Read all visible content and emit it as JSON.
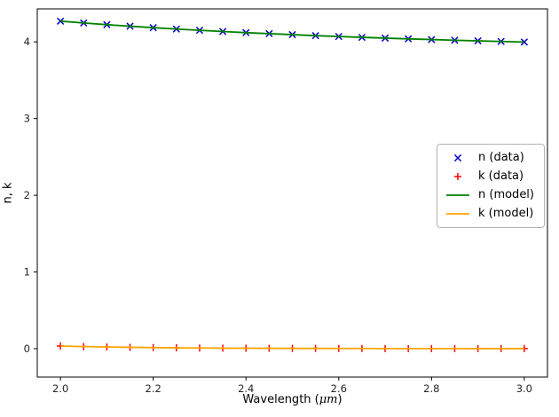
{
  "figure": {
    "background": "#ffffff",
    "axes_edge_color": "#000000",
    "tick_label_color": "#262626"
  },
  "chart_data": {
    "type": "line+scatter",
    "title": "",
    "xlabel": "Wavelength (μm)",
    "xlabel_prefix": "Wavelength (",
    "xlabel_italic": "μm",
    "xlabel_suffix": ")",
    "ylabel": "n, k",
    "xlim": [
      1.95,
      3.05
    ],
    "ylim": [
      -0.37,
      4.43
    ],
    "xticks": [
      2.0,
      2.2,
      2.4,
      2.6,
      2.8,
      3.0
    ],
    "xtick_labels": [
      "2.0",
      "2.2",
      "2.4",
      "2.6",
      "2.8",
      "3.0"
    ],
    "yticks": [
      0,
      1,
      2,
      3,
      4
    ],
    "ytick_labels": [
      "0",
      "1",
      "2",
      "3",
      "4"
    ],
    "grid": false,
    "legend": {
      "position": "center right",
      "border_color": "#b3b3b3",
      "background": "#ffffff"
    },
    "x": [
      2.0,
      2.05,
      2.1,
      2.15,
      2.2,
      2.25,
      2.3,
      2.35,
      2.4,
      2.45,
      2.5,
      2.55,
      2.6,
      2.65,
      2.7,
      2.75,
      2.8,
      2.85,
      2.9,
      2.95,
      3.0
    ],
    "series": [
      {
        "name": "n (data)",
        "style": "marker",
        "marker": "x",
        "color": "#0000cd",
        "values": [
          4.27,
          4.246,
          4.224,
          4.204,
          4.185,
          4.167,
          4.151,
          4.135,
          4.12,
          4.107,
          4.094,
          4.081,
          4.07,
          4.059,
          4.049,
          4.039,
          4.03,
          4.021,
          4.013,
          4.005,
          3.998
        ]
      },
      {
        "name": "k (data)",
        "style": "marker",
        "marker": "+",
        "color": "#ff0000",
        "values": [
          0.035,
          0.028,
          0.022,
          0.018,
          0.014,
          0.011,
          0.009,
          0.007,
          0.006,
          0.005,
          0.004,
          0.004,
          0.003,
          0.003,
          0.002,
          0.002,
          0.002,
          0.002,
          0.001,
          0.001,
          0.001
        ]
      },
      {
        "name": "n (model)",
        "style": "line",
        "marker": null,
        "color": "#008000",
        "values": [
          4.27,
          4.246,
          4.224,
          4.204,
          4.185,
          4.167,
          4.151,
          4.135,
          4.12,
          4.107,
          4.094,
          4.081,
          4.07,
          4.059,
          4.049,
          4.039,
          4.03,
          4.021,
          4.013,
          4.005,
          3.998
        ]
      },
      {
        "name": "k (model)",
        "style": "line",
        "marker": null,
        "color": "#ffa500",
        "values": [
          0.035,
          0.028,
          0.022,
          0.018,
          0.014,
          0.011,
          0.009,
          0.007,
          0.006,
          0.005,
          0.004,
          0.004,
          0.003,
          0.003,
          0.002,
          0.002,
          0.002,
          0.002,
          0.001,
          0.001,
          0.001
        ]
      }
    ]
  }
}
